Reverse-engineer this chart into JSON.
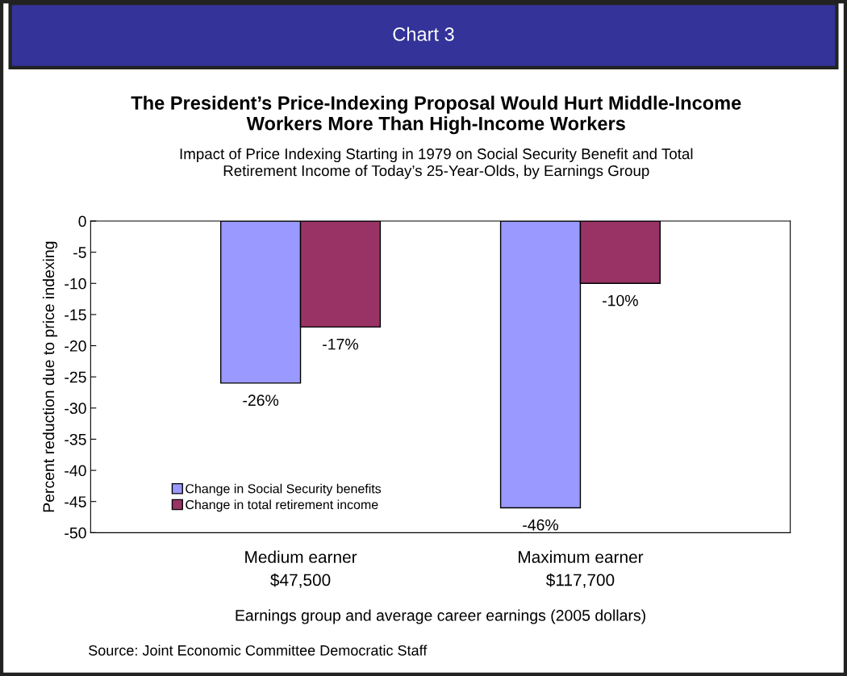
{
  "chart_data": {
    "type": "bar",
    "title": "The President’s Price-Indexing Proposal Would Hurt Middle-Income\nWorkers More Than High-Income Workers",
    "subtitle": "Impact of Price Indexing Starting in 1979 on Social Security Benefit and Total\nRetirement Income of Today’s 25-Year-Olds, by Earnings Group",
    "xlabel": "Earnings group and average career earnings (2005 dollars)",
    "ylabel": "Percent reduction due to price indexing",
    "annotations": [
      "Chart 3",
      "Source: Joint Economic Committee Democratic Staff"
    ],
    "categories": [
      "Medium earner\n$47,500",
      "Maximum earner\n$117,700"
    ],
    "series": [
      {
        "name": "Change in Social Security benefits",
        "color": "#9999ff",
        "values": [
          -26,
          -46
        ],
        "value_labels": [
          "-26%",
          "-46%"
        ]
      },
      {
        "name": "Change in total retirement income",
        "color": "#993366",
        "values": [
          -17,
          -10
        ],
        "value_labels": [
          "-17%",
          "-10%"
        ]
      }
    ],
    "ylim": [
      -50,
      0
    ],
    "yticks": [
      -50,
      -45,
      -40,
      -35,
      -30,
      -25,
      -20,
      -15,
      -10,
      -5,
      0
    ],
    "grid": false,
    "legend": "bottom left"
  }
}
